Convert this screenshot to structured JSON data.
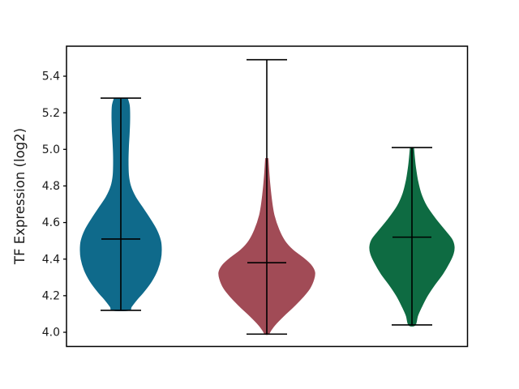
{
  "chart_data": {
    "type": "violin",
    "title": "",
    "xlabel": "",
    "ylabel": "TF Expression (log2)",
    "yticks": [
      "4.0",
      "4.2",
      "4.4",
      "4.6",
      "4.8",
      "5.0",
      "5.2",
      "5.4"
    ],
    "ylim": [
      3.92,
      5.57
    ],
    "grid": false,
    "legend": "none",
    "x_tick_labels": "none",
    "line_color": "#000000",
    "series": [
      {
        "name": "violin-1",
        "color": "#0f6a8b",
        "whisker_min": 4.12,
        "whisker_max": 5.28,
        "median": 4.51,
        "profile": [
          [
            5.28,
            8
          ],
          [
            5.24,
            10.5
          ],
          [
            5.18,
            11
          ],
          [
            5.1,
            10.5
          ],
          [
            5.02,
            9.5
          ],
          [
            4.94,
            9
          ],
          [
            4.86,
            9.5
          ],
          [
            4.8,
            12
          ],
          [
            4.74,
            18
          ],
          [
            4.68,
            27
          ],
          [
            4.62,
            36
          ],
          [
            4.56,
            44
          ],
          [
            4.5,
            49
          ],
          [
            4.45,
            50
          ],
          [
            4.4,
            49
          ],
          [
            4.34,
            45
          ],
          [
            4.28,
            38
          ],
          [
            4.22,
            28
          ],
          [
            4.18,
            20
          ],
          [
            4.14,
            13
          ],
          [
            4.12,
            10
          ]
        ]
      },
      {
        "name": "violin-2",
        "color": "#a14b56",
        "whisker_min": 3.99,
        "whisker_max": 5.49,
        "median": 4.38,
        "profile": [
          [
            4.95,
            1.5
          ],
          [
            4.88,
            2.5
          ],
          [
            4.8,
            4
          ],
          [
            4.72,
            6
          ],
          [
            4.64,
            9
          ],
          [
            4.56,
            15
          ],
          [
            4.5,
            22
          ],
          [
            4.45,
            32
          ],
          [
            4.41,
            44
          ],
          [
            4.37,
            54
          ],
          [
            4.33,
            59
          ],
          [
            4.29,
            58
          ],
          [
            4.24,
            53
          ],
          [
            4.19,
            44
          ],
          [
            4.14,
            33
          ],
          [
            4.09,
            21
          ],
          [
            4.04,
            10
          ],
          [
            4.01,
            5
          ],
          [
            3.99,
            2
          ]
        ]
      },
      {
        "name": "violin-3",
        "color": "#0e6b42",
        "whisker_min": 4.04,
        "whisker_max": 5.01,
        "median": 4.52,
        "profile": [
          [
            5.01,
            2
          ],
          [
            4.96,
            3
          ],
          [
            4.9,
            4.5
          ],
          [
            4.83,
            7
          ],
          [
            4.76,
            11
          ],
          [
            4.69,
            18
          ],
          [
            4.62,
            29
          ],
          [
            4.56,
            40
          ],
          [
            4.51,
            49
          ],
          [
            4.47,
            52
          ],
          [
            4.43,
            51
          ],
          [
            4.38,
            46
          ],
          [
            4.32,
            38
          ],
          [
            4.26,
            28
          ],
          [
            4.2,
            19
          ],
          [
            4.14,
            12
          ],
          [
            4.09,
            7
          ],
          [
            4.04,
            4
          ]
        ]
      }
    ]
  }
}
